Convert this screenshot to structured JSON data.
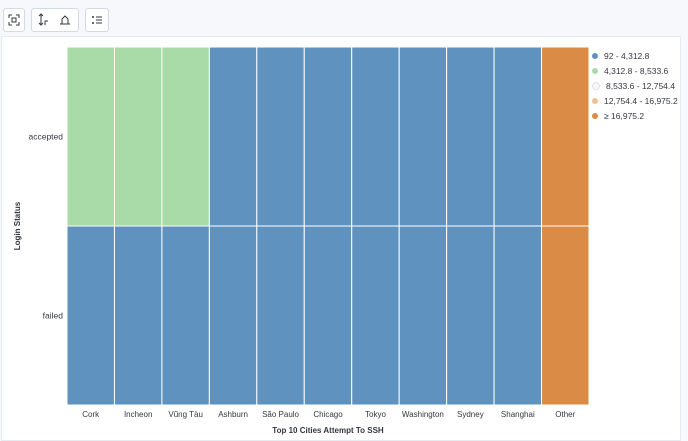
{
  "toolbar": {
    "buttons": [
      {
        "icon": "fullscreen-icon"
      },
      {
        "icon": "axis-toggle-icon"
      },
      {
        "icon": "legend-list-icon"
      }
    ]
  },
  "colors": {
    "bin1": "#6092c0",
    "bin2": "#a8dba7",
    "bin3": "#f5f7fa",
    "bin4": "#f3c18f",
    "bin5": "#da8b45"
  },
  "chart_data": {
    "type": "heatmap",
    "xlabel": "Top 10 Cities Attempt To SSH",
    "ylabel": "Login Status",
    "x_categories": [
      "Cork",
      "Incheon",
      "Vũng Tàu",
      "Ashburn",
      "São Paulo",
      "Chicago",
      "Tokyo",
      "Washington",
      "Sydney",
      "Shanghai",
      "Other"
    ],
    "y_categories": [
      "accepted",
      "failed"
    ],
    "cells": [
      {
        "x": "Cork",
        "y": "accepted",
        "bin": 1
      },
      {
        "x": "Incheon",
        "y": "accepted",
        "bin": 1
      },
      {
        "x": "Vũng Tàu",
        "y": "accepted",
        "bin": 1
      },
      {
        "x": "Ashburn",
        "y": "accepted",
        "bin": 0
      },
      {
        "x": "São Paulo",
        "y": "accepted",
        "bin": 0
      },
      {
        "x": "Chicago",
        "y": "accepted",
        "bin": 0
      },
      {
        "x": "Tokyo",
        "y": "accepted",
        "bin": 0
      },
      {
        "x": "Washington",
        "y": "accepted",
        "bin": 0
      },
      {
        "x": "Sydney",
        "y": "accepted",
        "bin": 0
      },
      {
        "x": "Shanghai",
        "y": "accepted",
        "bin": 0
      },
      {
        "x": "Other",
        "y": "accepted",
        "bin": 4
      },
      {
        "x": "Cork",
        "y": "failed",
        "bin": 0
      },
      {
        "x": "Incheon",
        "y": "failed",
        "bin": 0
      },
      {
        "x": "Vũng Tàu",
        "y": "failed",
        "bin": 0
      },
      {
        "x": "Ashburn",
        "y": "failed",
        "bin": 0
      },
      {
        "x": "São Paulo",
        "y": "failed",
        "bin": 0
      },
      {
        "x": "Chicago",
        "y": "failed",
        "bin": 0
      },
      {
        "x": "Tokyo",
        "y": "failed",
        "bin": 0
      },
      {
        "x": "Washington",
        "y": "failed",
        "bin": 0
      },
      {
        "x": "Sydney",
        "y": "failed",
        "bin": 0
      },
      {
        "x": "Shanghai",
        "y": "failed",
        "bin": 0
      },
      {
        "x": "Other",
        "y": "failed",
        "bin": 4
      }
    ],
    "legend": [
      {
        "label": "92 - 4,312.8",
        "color": "#6092c0"
      },
      {
        "label": "4,312.8 - 8,533.6",
        "color": "#a8dba7"
      },
      {
        "label": "8,533.6 - 12,754.4",
        "color": "#f5f7fa"
      },
      {
        "label": "12,754.4 - 16,975.2",
        "color": "#f3c18f"
      },
      {
        "label": "≥ 16,975.2",
        "color": "#da8b45"
      }
    ],
    "legend_position": "right"
  }
}
